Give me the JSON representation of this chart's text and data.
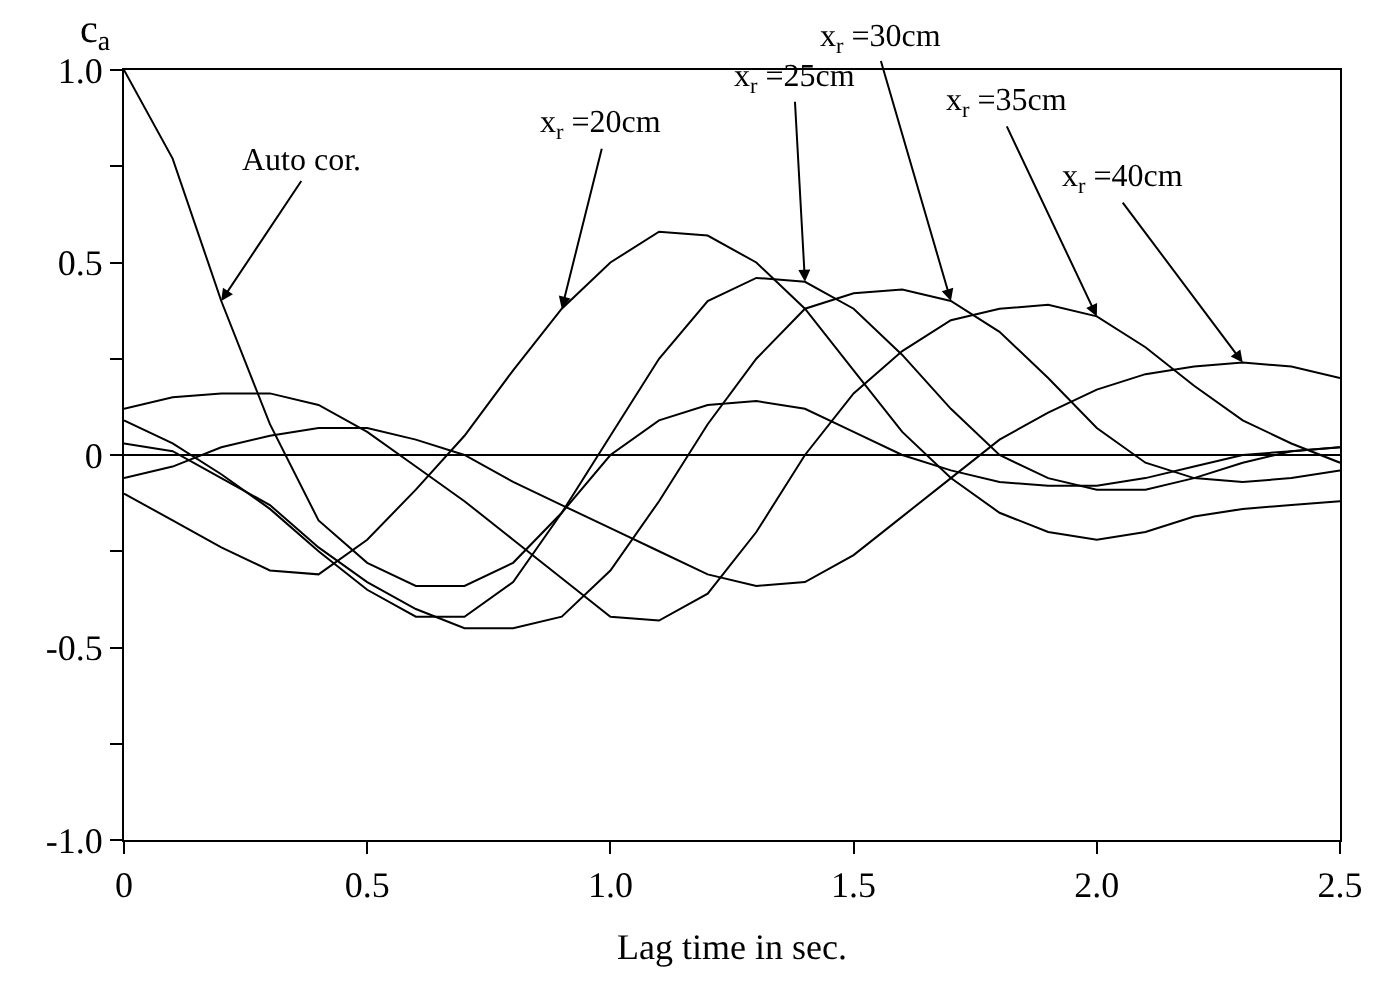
{
  "chart_data": {
    "type": "line",
    "xlabel": "Lag time in sec.",
    "ylabel": "c$_{a}$",
    "x": [
      0,
      0.1,
      0.2,
      0.3,
      0.4,
      0.5,
      0.6,
      0.7,
      0.8,
      0.9,
      1.0,
      1.1,
      1.2,
      1.3,
      1.4,
      1.5,
      1.6,
      1.7,
      1.8,
      1.9,
      2.0,
      2.1,
      2.2,
      2.3,
      2.4,
      2.5
    ],
    "series": [
      {
        "name": "Auto cor.",
        "color": "#000000",
        "values": [
          1.0,
          0.77,
          0.4,
          0.08,
          -0.17,
          -0.28,
          -0.34,
          -0.34,
          -0.28,
          -0.15,
          0.0,
          0.09,
          0.13,
          0.14,
          0.12,
          0.06,
          0.0,
          -0.04,
          -0.07,
          -0.08,
          -0.08,
          -0.06,
          -0.03,
          0.0,
          0.01,
          0.02
        ]
      },
      {
        "name": "x$_{r}$ =20cm",
        "color": "#000000",
        "values": [
          -0.1,
          -0.17,
          -0.24,
          -0.3,
          -0.31,
          -0.22,
          -0.09,
          0.05,
          0.22,
          0.38,
          0.5,
          0.58,
          0.57,
          0.5,
          0.38,
          0.22,
          0.06,
          -0.06,
          -0.15,
          -0.2,
          -0.22,
          -0.2,
          -0.16,
          -0.14,
          -0.13,
          -0.12
        ]
      },
      {
        "name": "x$_{r}$ =25cm",
        "color": "#000000",
        "values": [
          0.09,
          0.03,
          -0.05,
          -0.14,
          -0.25,
          -0.35,
          -0.42,
          -0.42,
          -0.33,
          -0.15,
          0.05,
          0.25,
          0.4,
          0.46,
          0.45,
          0.38,
          0.26,
          0.12,
          0.0,
          -0.06,
          -0.09,
          -0.09,
          -0.06,
          -0.02,
          0.01,
          0.02
        ]
      },
      {
        "name": "x$_{r}$ =30cm",
        "color": "#000000",
        "values": [
          0.03,
          0.01,
          -0.06,
          -0.13,
          -0.24,
          -0.33,
          -0.4,
          -0.45,
          -0.45,
          -0.42,
          -0.3,
          -0.12,
          0.08,
          0.25,
          0.38,
          0.42,
          0.43,
          0.4,
          0.32,
          0.2,
          0.07,
          -0.02,
          -0.06,
          -0.07,
          -0.06,
          -0.04
        ]
      },
      {
        "name": "x$_{r}$ =35cm",
        "color": "#000000",
        "values": [
          0.12,
          0.15,
          0.16,
          0.16,
          0.13,
          0.06,
          -0.03,
          -0.12,
          -0.22,
          -0.32,
          -0.42,
          -0.43,
          -0.36,
          -0.2,
          0.0,
          0.16,
          0.27,
          0.35,
          0.38,
          0.39,
          0.36,
          0.28,
          0.18,
          0.09,
          0.03,
          -0.02
        ]
      },
      {
        "name": "x$_{r}$ =40cm",
        "color": "#000000",
        "values": [
          -0.06,
          -0.03,
          0.02,
          0.05,
          0.07,
          0.07,
          0.04,
          0.0,
          -0.07,
          -0.13,
          -0.19,
          -0.25,
          -0.31,
          -0.34,
          -0.33,
          -0.26,
          -0.16,
          -0.06,
          0.04,
          0.11,
          0.17,
          0.21,
          0.23,
          0.24,
          0.23,
          0.2
        ]
      }
    ],
    "xlim": [
      0,
      2.5
    ],
    "xticks": [
      0,
      0.5,
      {
        "value": 1.0,
        "label": "1.0"
      },
      1.5,
      {
        "value": 2.0,
        "label": "2.0"
      },
      2.5
    ],
    "ylim": [
      -1.0,
      1.0
    ],
    "yticks": [
      {
        "value": -1.0,
        "label": "-1.0"
      },
      {
        "value": -0.75,
        "label": null
      },
      {
        "value": -0.5,
        "label": "-0.5"
      },
      {
        "value": -0.25,
        "label": null
      },
      0,
      {
        "value": 0.25,
        "label": null
      },
      0.5,
      {
        "value": 0.75,
        "label": null
      },
      {
        "value": 1.0,
        "label": "1.0"
      }
    ],
    "ref_lines": [
      {
        "axis": "y",
        "value": 0,
        "color": "#000000"
      }
    ],
    "legend": false,
    "marker": "none",
    "line_style": "solid"
  }
}
